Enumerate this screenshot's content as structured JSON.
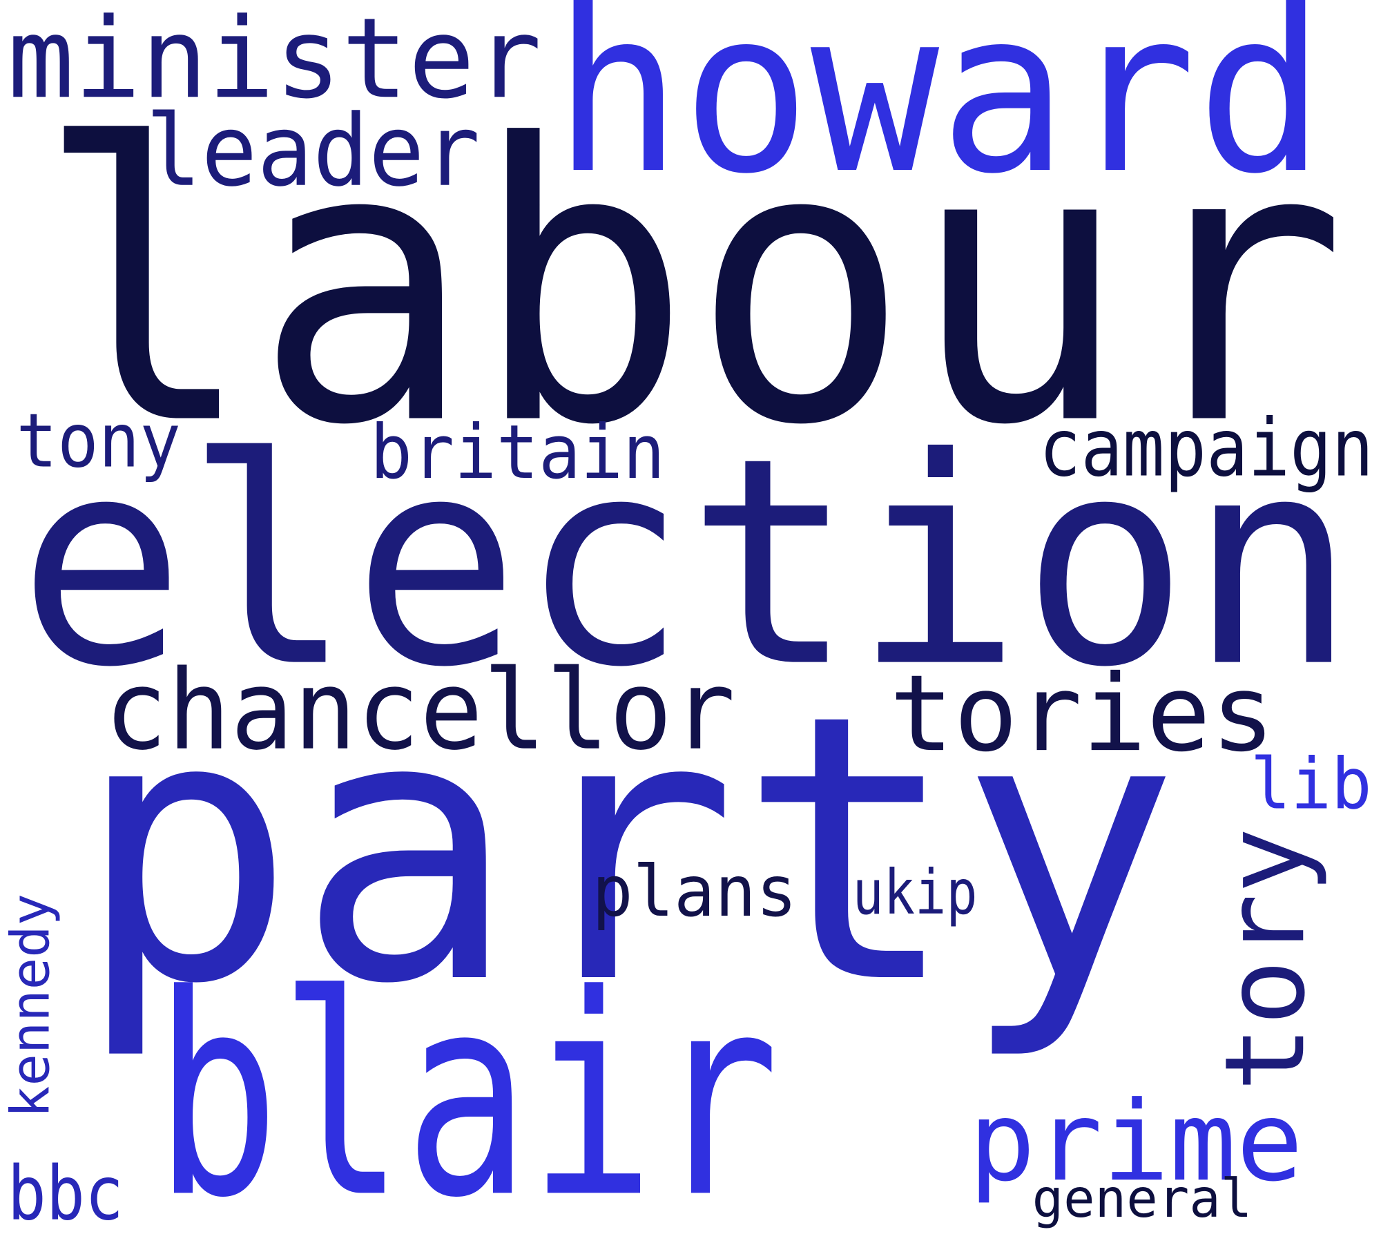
{
  "words": [
    {
      "text": "labour",
      "color": "#0d0f3f"
    },
    {
      "text": "howard",
      "color": "#3030e0"
    },
    {
      "text": "minister",
      "color": "#1c1c7a"
    },
    {
      "text": "leader",
      "color": "#1c1c7a"
    },
    {
      "text": "tony",
      "color": "#1c1c7a"
    },
    {
      "text": "britain",
      "color": "#1c1c7a"
    },
    {
      "text": "campaign",
      "color": "#0d0f3f"
    },
    {
      "text": "election",
      "color": "#1c1c7a"
    },
    {
      "text": "chancellor",
      "color": "#12124a"
    },
    {
      "text": "tories",
      "color": "#12124a"
    },
    {
      "text": "lib",
      "color": "#3030e0"
    },
    {
      "text": "party",
      "color": "#2828b8"
    },
    {
      "text": "tory",
      "color": "#1c1c7a"
    },
    {
      "text": "plans",
      "color": "#12124a"
    },
    {
      "text": "ukip",
      "color": "#1c1c7a"
    },
    {
      "text": "kennedy",
      "color": "#2828b8"
    },
    {
      "text": "blair",
      "color": "#3030e0"
    },
    {
      "text": "prime",
      "color": "#3030e0"
    },
    {
      "text": "bbc",
      "color": "#2828b8"
    },
    {
      "text": "general",
      "color": "#0d0f3f"
    }
  ]
}
